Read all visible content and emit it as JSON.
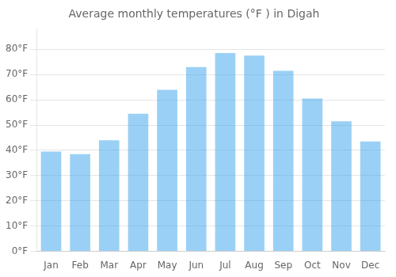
{
  "chart_data": {
    "type": "bar",
    "title": "Average monthly temperatures (°F ) in Digah",
    "categories": [
      "Jan",
      "Feb",
      "Mar",
      "Apr",
      "May",
      "Jun",
      "Jul",
      "Aug",
      "Sep",
      "Oct",
      "Nov",
      "Dec"
    ],
    "values": [
      39.5,
      38.5,
      44.0,
      54.5,
      64.0,
      73.0,
      78.5,
      77.5,
      71.5,
      60.5,
      51.5,
      43.5
    ],
    "ylim": [
      0,
      88
    ],
    "yticks": [
      {
        "value": 0,
        "label": "0°F"
      },
      {
        "value": 10,
        "label": "10°F"
      },
      {
        "value": 20,
        "label": "20°F"
      },
      {
        "value": 30,
        "label": "30°F"
      },
      {
        "value": 40,
        "label": "40°F"
      },
      {
        "value": 50,
        "label": "50°F"
      },
      {
        "value": 60,
        "label": "60°F"
      },
      {
        "value": 70,
        "label": "70°F"
      },
      {
        "value": 80,
        "label": "80°F"
      }
    ],
    "grid": true
  }
}
